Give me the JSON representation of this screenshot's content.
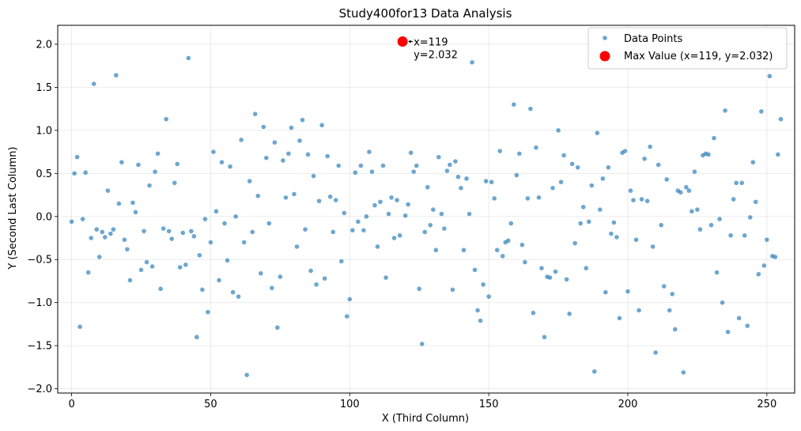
{
  "chart_data": {
    "type": "scatter",
    "title": "Study400for13 Data Analysis",
    "xlabel": "X (Third Column)",
    "ylabel": "Y (Second Last Column)",
    "xlim": [
      -5,
      260
    ],
    "ylim": [
      -2.05,
      2.22
    ],
    "xticks": [
      0,
      50,
      100,
      150,
      200,
      250
    ],
    "yticks": [
      -2.0,
      -1.5,
      -1.0,
      -0.5,
      0.0,
      0.5,
      1.0,
      1.5,
      2.0
    ],
    "xtick_labels": [
      "0",
      "50",
      "100",
      "150",
      "200",
      "250"
    ],
    "ytick_labels": [
      "−2.0",
      "−1.5",
      "−1.0",
      "−0.5",
      "0.0",
      "0.5",
      "1.0",
      "1.5",
      "2.0"
    ],
    "grid": true,
    "legend_position": "top-right",
    "colors": {
      "points": "#1f77b4",
      "max": "#ff0000"
    },
    "series": [
      {
        "name": "Data Points",
        "x": [
          0,
          1,
          2,
          3,
          4,
          5,
          6,
          7,
          8,
          9,
          10,
          11,
          12,
          13,
          14,
          15,
          16,
          17,
          18,
          19,
          20,
          21,
          22,
          23,
          24,
          25,
          26,
          27,
          28,
          29,
          30,
          31,
          32,
          33,
          34,
          35,
          36,
          37,
          38,
          39,
          40,
          41,
          42,
          43,
          44,
          45,
          46,
          47,
          48,
          49,
          50,
          51,
          52,
          53,
          54,
          55,
          56,
          57,
          58,
          59,
          60,
          61,
          62,
          63,
          64,
          65,
          66,
          67,
          68,
          69,
          70,
          71,
          72,
          73,
          74,
          75,
          76,
          77,
          78,
          79,
          80,
          81,
          82,
          83,
          84,
          85,
          86,
          87,
          88,
          89,
          90,
          91,
          92,
          93,
          94,
          95,
          96,
          97,
          98,
          99,
          100,
          101,
          102,
          103,
          104,
          105,
          106,
          107,
          108,
          109,
          110,
          111,
          112,
          113,
          114,
          115,
          116,
          117,
          118,
          119,
          120,
          121,
          122,
          123,
          124,
          125,
          126,
          127,
          128,
          129,
          130,
          131,
          132,
          133,
          134,
          135,
          136,
          137,
          138,
          139,
          140,
          141,
          142,
          143,
          144,
          145,
          146,
          147,
          148,
          149,
          150,
          151,
          152,
          153,
          154,
          155,
          156,
          157,
          158,
          159,
          160,
          161,
          162,
          163,
          164,
          165,
          166,
          167,
          168,
          169,
          170,
          171,
          172,
          173,
          174,
          175,
          176,
          177,
          178,
          179,
          180,
          181,
          182,
          183,
          184,
          185,
          186,
          187,
          188,
          189,
          190,
          191,
          192,
          193,
          194,
          195,
          196,
          197,
          198,
          199,
          200,
          201,
          202,
          203,
          204,
          205,
          206,
          207,
          208,
          209,
          210,
          211,
          212,
          213,
          214,
          215,
          216,
          217,
          218,
          219,
          220,
          221,
          222,
          223,
          224,
          225,
          226,
          227,
          228,
          229,
          230,
          231,
          232,
          233,
          234,
          235,
          236,
          237,
          238,
          239,
          240,
          241,
          242,
          243,
          244,
          245,
          246,
          247,
          248,
          249,
          250,
          251,
          252,
          253,
          254,
          255
        ],
        "y": [
          -0.06,
          0.5,
          0.69,
          -1.28,
          -0.03,
          0.51,
          -0.65,
          -0.25,
          1.54,
          -0.15,
          -0.47,
          -0.18,
          -0.24,
          0.3,
          -0.2,
          -0.15,
          1.64,
          0.15,
          0.63,
          -0.27,
          -0.38,
          -0.74,
          0.16,
          0.05,
          0.6,
          -0.62,
          -0.17,
          -0.53,
          0.36,
          -0.58,
          0.52,
          0.73,
          -0.84,
          -0.14,
          1.13,
          -0.17,
          -0.26,
          0.39,
          0.61,
          -0.59,
          -0.19,
          -0.56,
          1.84,
          -0.17,
          -0.23,
          -1.4,
          -0.45,
          -0.85,
          -0.03,
          -1.11,
          -0.3,
          0.75,
          0.06,
          -0.74,
          0.63,
          -0.08,
          -0.51,
          0.58,
          -0.88,
          -0.0,
          -0.93,
          0.89,
          -0.3,
          -1.84,
          0.41,
          -0.18,
          1.19,
          0.24,
          -0.66,
          1.04,
          0.68,
          -0.08,
          -0.83,
          0.86,
          -1.29,
          -0.7,
          0.65,
          0.22,
          0.73,
          1.03,
          0.26,
          -0.35,
          0.88,
          1.12,
          -0.15,
          0.72,
          -0.63,
          0.47,
          -0.79,
          0.18,
          1.06,
          -0.72,
          0.7,
          0.23,
          -0.18,
          0.19,
          0.59,
          -0.52,
          0.04,
          -1.16,
          -0.96,
          -0.16,
          0.51,
          -0.06,
          0.59,
          -0.16,
          0.0,
          0.75,
          0.52,
          0.13,
          -0.35,
          0.17,
          0.59,
          -0.71,
          0.03,
          0.22,
          -0.25,
          0.19,
          -0.22,
          2.032,
          0.01,
          0.14,
          0.74,
          0.52,
          0.59,
          -0.84,
          -1.48,
          -0.18,
          0.34,
          -0.1,
          0.08,
          -0.39,
          0.69,
          0.03,
          -0.14,
          0.53,
          0.6,
          -0.85,
          0.64,
          0.46,
          0.33,
          -0.39,
          0.44,
          0.03,
          1.79,
          -0.62,
          -1.09,
          -1.21,
          -0.79,
          0.41,
          -0.93,
          0.4,
          0.21,
          -0.39,
          0.76,
          -0.46,
          -0.3,
          -0.28,
          -0.08,
          1.3,
          0.48,
          0.73,
          -0.33,
          -0.53,
          0.21,
          1.25,
          -1.12,
          0.8,
          0.22,
          -0.6,
          -1.4,
          -0.7,
          -0.71,
          0.33,
          -0.64,
          1.0,
          0.4,
          0.71,
          -0.73,
          -1.13,
          0.61,
          -0.31,
          0.57,
          -0.08,
          0.11,
          -0.6,
          -0.06,
          0.36,
          -1.8,
          0.97,
          0.08,
          0.44,
          -0.88,
          0.57,
          -0.2,
          -0.07,
          -0.24,
          -1.18,
          0.74,
          0.76,
          -0.87,
          0.3,
          0.19,
          -0.27,
          -1.09,
          0.2,
          0.67,
          0.18,
          0.81,
          -0.35,
          -1.58,
          0.6,
          -0.1,
          -0.81,
          0.43,
          -1.09,
          -0.9,
          -1.31,
          0.3,
          0.28,
          -1.81,
          0.34,
          0.3,
          0.06,
          0.52,
          0.08,
          -0.15,
          0.71,
          0.73,
          0.72,
          -0.1,
          0.91,
          -0.65,
          -0.03,
          -1.0,
          1.23,
          -1.34,
          -0.22,
          0.2,
          0.39,
          -1.18,
          0.39,
          -0.22,
          -1.27,
          -0.01,
          0.63,
          0.17,
          -0.67,
          1.22,
          -0.57,
          -0.27,
          1.63,
          -0.46,
          -0.47,
          0.72,
          1.13
        ]
      },
      {
        "name": "Max Value (x=119, y=2.032)",
        "x": [
          119
        ],
        "y": [
          2.032
        ]
      }
    ],
    "annotations": [
      {
        "text_line1": "x=119",
        "text_line2": "y=2.032",
        "x": 119,
        "y": 2.032
      }
    ]
  }
}
